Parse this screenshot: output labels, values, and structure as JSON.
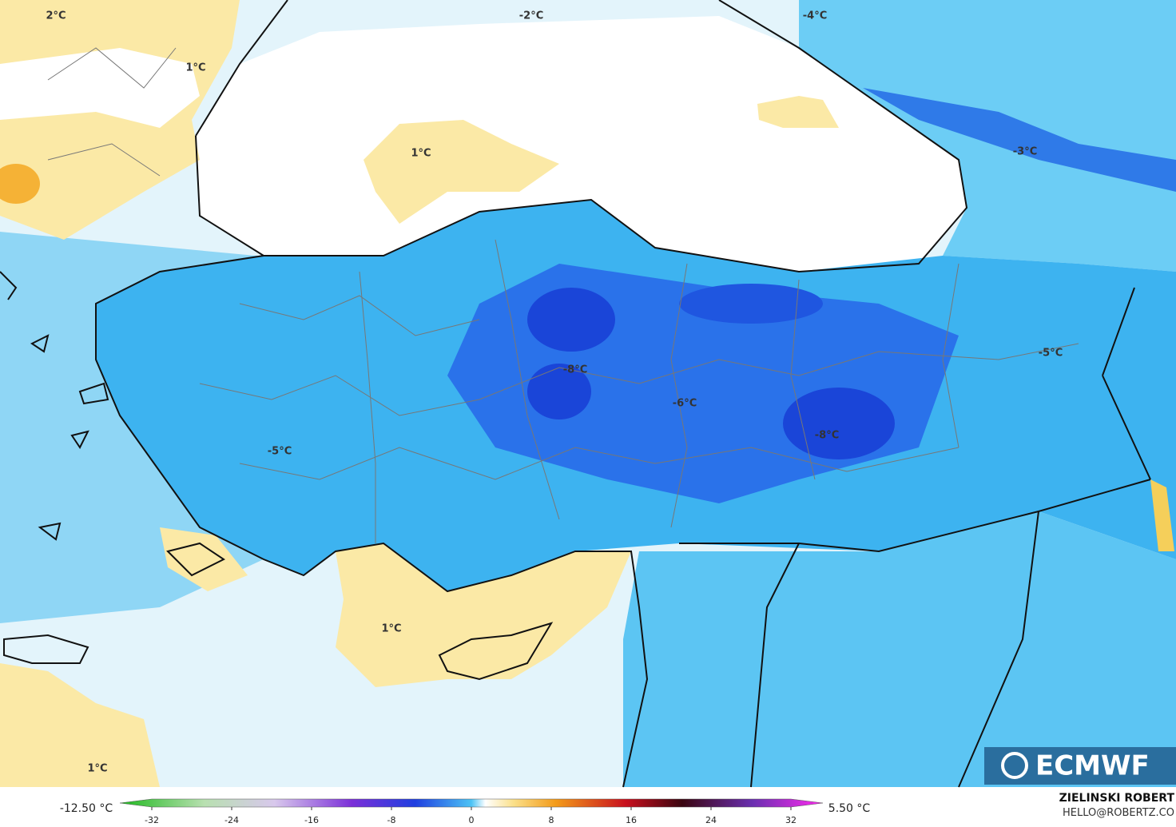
{
  "map": {
    "labels": [
      "2°C",
      "1°C",
      "-2°C",
      "-4°C",
      "1°C",
      "-3°C",
      "-5°C",
      "-8°C",
      "-6°C",
      "-8°C",
      "-5°C",
      "1°C",
      "1°C"
    ],
    "logo": "ECMWF",
    "author": "ZIELINSKI ROBERT",
    "contact": "HELLO@ROBERTZ.CO"
  },
  "colorbar": {
    "min_label": "-12.50 °C",
    "max_label": "5.50 °C",
    "lim": [
      -32,
      32
    ],
    "ticks": [
      -32,
      -24,
      -16,
      -8,
      0,
      8,
      16,
      24,
      32
    ]
  }
}
